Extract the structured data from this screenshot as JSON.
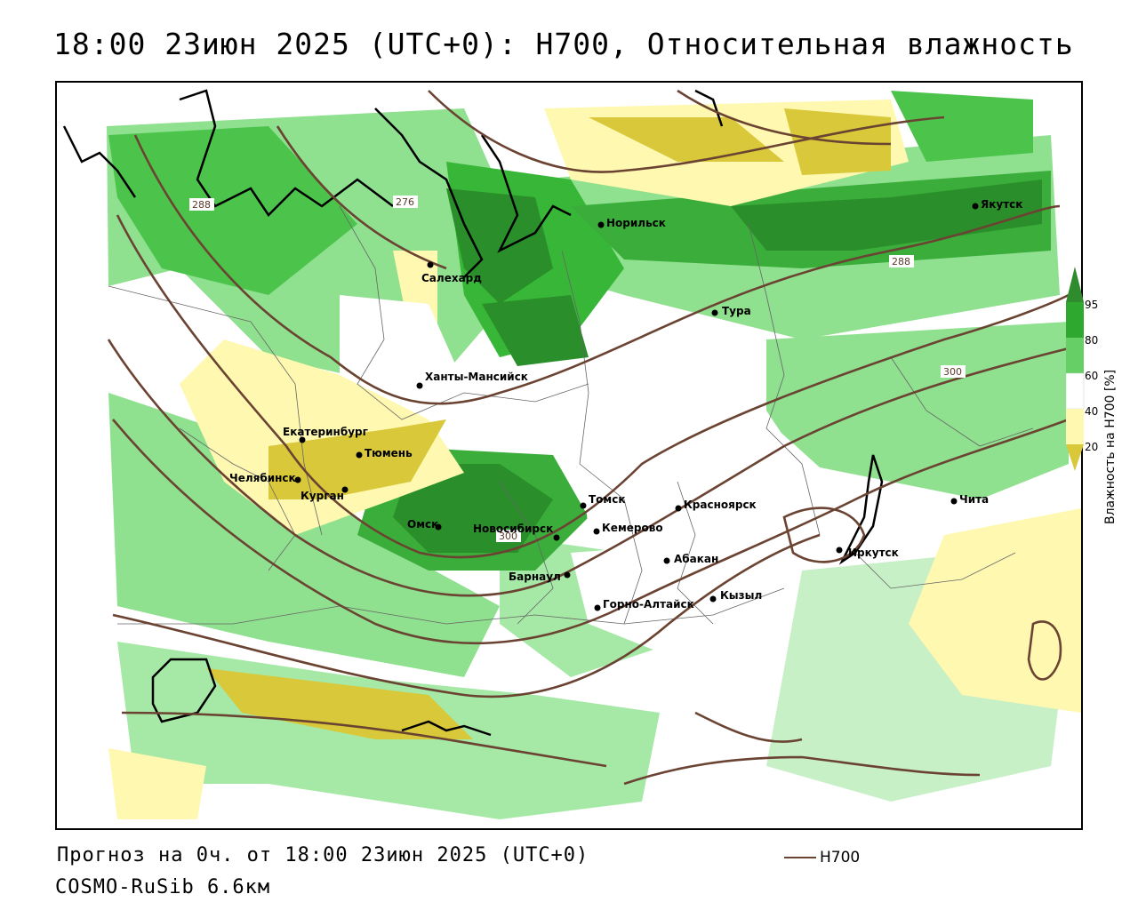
{
  "title": "18:00 23июн 2025 (UTC+0): H700, Относительная влажность",
  "footer": {
    "forecast": "Прогноз на 0ч. от 18:00 23июн 2025 (UTC+0)",
    "model": "COSMO-RuSib 6.6км",
    "line_legend": "H700"
  },
  "colorbar": {
    "title": "Влажность на H700 [%]",
    "ticks": [
      "95",
      "80",
      "60",
      "40",
      "20"
    ],
    "colors": {
      "above_95": "#2e8b2e",
      "80_95": "#2ea82e",
      "60_80": "#66d066",
      "40_60": "#ffffff",
      "20_40": "#fff8b0",
      "below_20": "#d8c83a"
    }
  },
  "contour_labels": [
    "288",
    "276",
    "288",
    "300",
    "300"
  ],
  "cities": [
    {
      "name": "Норильск"
    },
    {
      "name": "Якутск"
    },
    {
      "name": "Салехард"
    },
    {
      "name": "Тура"
    },
    {
      "name": "Ханты-Мансийск"
    },
    {
      "name": "Екатеринбург"
    },
    {
      "name": "Тюмень"
    },
    {
      "name": "Челябинск"
    },
    {
      "name": "Курган"
    },
    {
      "name": "Омск"
    },
    {
      "name": "Новосибирск"
    },
    {
      "name": "Томск"
    },
    {
      "name": "Красноярск"
    },
    {
      "name": "Кемерово"
    },
    {
      "name": "Абакан"
    },
    {
      "name": "Барнаул"
    },
    {
      "name": "Горно-Алтайск"
    },
    {
      "name": "Кызыл"
    },
    {
      "name": "Иркутск"
    },
    {
      "name": "Чита"
    }
  ]
}
